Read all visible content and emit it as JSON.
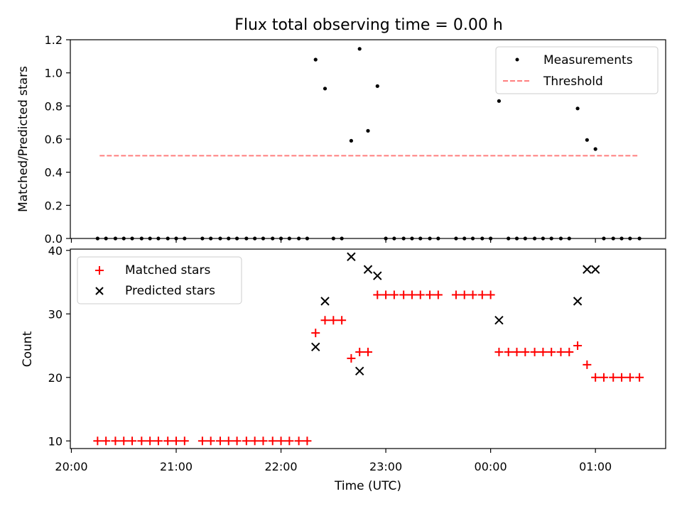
{
  "chart_data": [
    {
      "type": "scatter",
      "title": "Flux total observing time = 0.00 h",
      "xlabel": "",
      "ylabel": "Matched/Predicted stars",
      "ylim": [
        0,
        1.2
      ],
      "yticks": [
        "0.0",
        "0.2",
        "0.4",
        "0.6",
        "0.8",
        "1.0",
        "1.2"
      ],
      "xlim_hours": [
        19.99,
        25.67
      ],
      "legend_location": "upper right",
      "threshold": {
        "name": "Threshold",
        "color": "#ff7f7f",
        "value": 0.5,
        "x_start": 20.27,
        "x_end": 25.4
      },
      "series": [
        {
          "name": "Measurements",
          "color": "#000000",
          "marker": "dot",
          "points": [
            [
              20.25,
              0
            ],
            [
              20.33,
              0
            ],
            [
              20.42,
              0
            ],
            [
              20.5,
              0
            ],
            [
              20.58,
              0
            ],
            [
              20.67,
              0
            ],
            [
              20.75,
              0
            ],
            [
              20.83,
              0
            ],
            [
              20.92,
              0
            ],
            [
              21.0,
              0
            ],
            [
              21.08,
              0
            ],
            [
              21.25,
              0
            ],
            [
              21.33,
              0
            ],
            [
              21.42,
              0
            ],
            [
              21.5,
              0
            ],
            [
              21.58,
              0
            ],
            [
              21.67,
              0
            ],
            [
              21.75,
              0
            ],
            [
              21.83,
              0
            ],
            [
              21.92,
              0
            ],
            [
              22.0,
              0
            ],
            [
              22.08,
              0
            ],
            [
              22.17,
              0
            ],
            [
              22.25,
              0
            ],
            [
              22.33,
              1.08
            ],
            [
              22.42,
              0.905
            ],
            [
              22.5,
              0
            ],
            [
              22.58,
              0
            ],
            [
              22.67,
              0.59
            ],
            [
              22.75,
              1.145
            ],
            [
              22.83,
              0.65
            ],
            [
              22.92,
              0.92
            ],
            [
              23.0,
              0
            ],
            [
              23.08,
              0
            ],
            [
              23.17,
              0
            ],
            [
              23.25,
              0
            ],
            [
              23.33,
              0
            ],
            [
              23.42,
              0
            ],
            [
              23.5,
              0
            ],
            [
              23.67,
              0
            ],
            [
              23.75,
              0
            ],
            [
              23.83,
              0
            ],
            [
              23.92,
              0
            ],
            [
              24.0,
              0
            ],
            [
              24.08,
              0.83
            ],
            [
              24.17,
              0
            ],
            [
              24.25,
              0
            ],
            [
              24.33,
              0
            ],
            [
              24.42,
              0
            ],
            [
              24.5,
              0
            ],
            [
              24.58,
              0
            ],
            [
              24.67,
              0
            ],
            [
              24.75,
              0
            ],
            [
              24.83,
              0.785
            ],
            [
              24.92,
              0.595
            ],
            [
              25.0,
              0.54
            ],
            [
              25.08,
              0
            ],
            [
              25.17,
              0
            ],
            [
              25.25,
              0
            ],
            [
              25.33,
              0
            ],
            [
              25.42,
              0
            ]
          ]
        }
      ]
    },
    {
      "type": "scatter",
      "title": "",
      "xlabel": "Time (UTC)",
      "ylabel": "Count",
      "ylim": [
        8.8,
        40.2
      ],
      "yticks": [
        "10",
        "20",
        "30",
        "40"
      ],
      "xlim_hours": [
        19.99,
        25.67
      ],
      "xticks": [
        "20:00",
        "21:00",
        "22:00",
        "23:00",
        "00:00",
        "01:00"
      ],
      "legend_location": "upper left",
      "series": [
        {
          "name": "Matched stars",
          "color": "#ff0000",
          "marker": "plus",
          "points": [
            [
              20.25,
              10
            ],
            [
              20.33,
              10
            ],
            [
              20.42,
              10
            ],
            [
              20.5,
              10
            ],
            [
              20.58,
              10
            ],
            [
              20.67,
              10
            ],
            [
              20.75,
              10
            ],
            [
              20.83,
              10
            ],
            [
              20.92,
              10
            ],
            [
              21.0,
              10
            ],
            [
              21.08,
              10
            ],
            [
              21.25,
              10
            ],
            [
              21.33,
              10
            ],
            [
              21.42,
              10
            ],
            [
              21.5,
              10
            ],
            [
              21.58,
              10
            ],
            [
              21.67,
              10
            ],
            [
              21.75,
              10
            ],
            [
              21.83,
              10
            ],
            [
              21.92,
              10
            ],
            [
              22.0,
              10
            ],
            [
              22.08,
              10
            ],
            [
              22.17,
              10
            ],
            [
              22.25,
              10
            ],
            [
              22.33,
              27
            ],
            [
              22.42,
              29
            ],
            [
              22.5,
              29
            ],
            [
              22.58,
              29
            ],
            [
              22.67,
              23
            ],
            [
              22.75,
              24
            ],
            [
              22.83,
              24
            ],
            [
              22.92,
              33
            ],
            [
              23.0,
              33
            ],
            [
              23.08,
              33
            ],
            [
              23.17,
              33
            ],
            [
              23.25,
              33
            ],
            [
              23.33,
              33
            ],
            [
              23.42,
              33
            ],
            [
              23.5,
              33
            ],
            [
              23.67,
              33
            ],
            [
              23.75,
              33
            ],
            [
              23.83,
              33
            ],
            [
              23.92,
              33
            ],
            [
              24.0,
              33
            ],
            [
              24.08,
              24
            ],
            [
              24.17,
              24
            ],
            [
              24.25,
              24
            ],
            [
              24.33,
              24
            ],
            [
              24.42,
              24
            ],
            [
              24.5,
              24
            ],
            [
              24.58,
              24
            ],
            [
              24.67,
              24
            ],
            [
              24.75,
              24
            ],
            [
              24.83,
              25
            ],
            [
              24.92,
              22
            ],
            [
              25.0,
              20
            ],
            [
              25.08,
              20
            ],
            [
              25.17,
              20
            ],
            [
              25.25,
              20
            ],
            [
              25.33,
              20
            ],
            [
              25.42,
              20
            ]
          ]
        },
        {
          "name": "Predicted stars",
          "color": "#000000",
          "marker": "x",
          "points": [
            [
              22.33,
              24.8
            ],
            [
              22.42,
              32
            ],
            [
              22.67,
              39
            ],
            [
              22.75,
              21
            ],
            [
              22.83,
              37
            ],
            [
              22.92,
              36
            ],
            [
              24.08,
              29
            ],
            [
              24.83,
              32
            ],
            [
              24.92,
              37
            ],
            [
              25.0,
              37
            ]
          ]
        }
      ]
    }
  ]
}
